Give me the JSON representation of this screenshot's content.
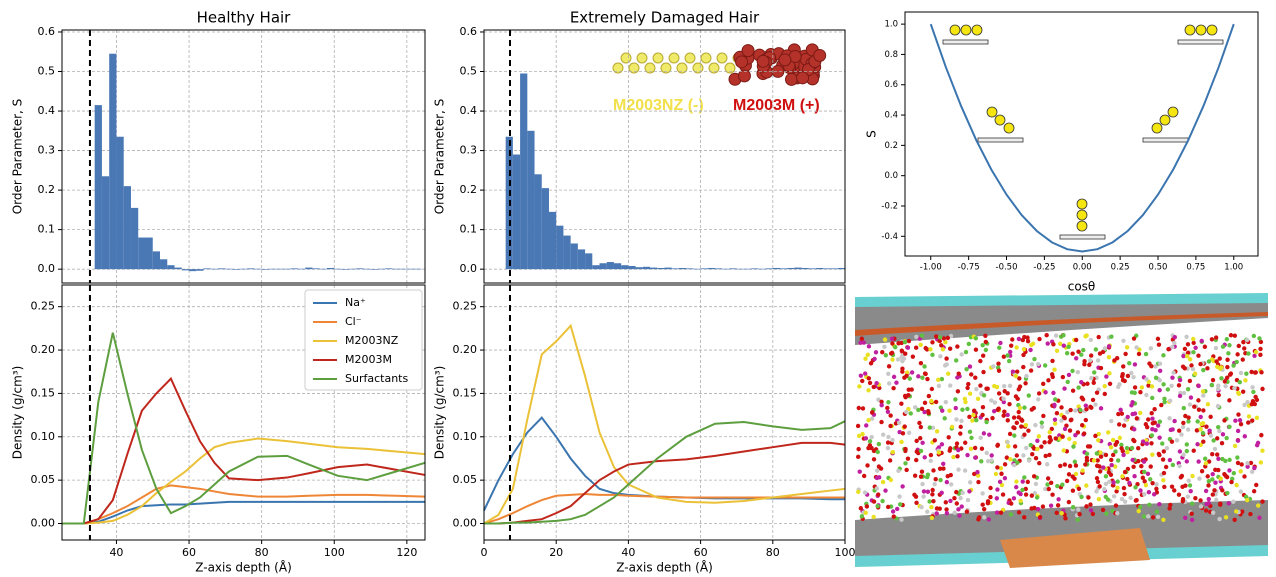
{
  "chart_data": [
    {
      "type": "histogram",
      "title": "Healthy Hair",
      "ylabel": "Order Parameter, S",
      "color": "#4a78b5",
      "grid": true,
      "vline": 32.7,
      "bins": [
        34,
        36,
        38,
        40,
        42,
        44,
        46,
        48,
        50,
        52,
        54,
        56,
        58,
        60,
        62,
        64,
        66,
        68,
        70,
        72,
        74,
        76,
        78,
        80,
        82,
        84,
        86,
        88,
        90,
        92,
        94,
        96,
        98,
        100,
        102,
        104,
        106,
        108,
        110,
        112,
        114,
        116,
        118,
        120,
        122,
        124
      ],
      "values": [
        0.415,
        0.235,
        0.545,
        0.335,
        0.21,
        0.155,
        0.08,
        0.08,
        0.045,
        0.025,
        0.01,
        0.004,
        -0.003,
        -0.005,
        -0.004,
        0.002,
        0.001,
        0.002,
        0.001,
        0,
        0.001,
        0.002,
        0.001,
        0,
        0.001,
        0.001,
        0.001,
        0.002,
        0.001,
        0.004,
        0.002,
        0.001,
        0.003,
        0.001,
        0,
        0.001,
        0.002,
        0.001,
        0,
        0.001,
        0.002,
        0.001,
        0.001,
        0.001,
        0.001
      ],
      "xlim": [
        25,
        125
      ],
      "ylim": [
        -0.035,
        0.605
      ],
      "yticks": [
        {
          "value": 0,
          "label": "0.0"
        },
        0.1,
        0.2,
        0.3,
        0.4,
        0.5,
        0.6
      ]
    },
    {
      "type": "line",
      "xlabel": "Z-axis depth (Å)",
      "ylabel": "Density (g/cm³)",
      "grid": true,
      "vline": 32.7,
      "legend": "upper right",
      "x": [
        25,
        31,
        35,
        39,
        43,
        47,
        51,
        55,
        59,
        63,
        67,
        71,
        79,
        87,
        93,
        101,
        109,
        117,
        125
      ],
      "series": [
        {
          "name": "Na⁺",
          "color": "#3b75af",
          "values": [
            0,
            0,
            0.002,
            0.008,
            0.015,
            0.02,
            0.021,
            0.022,
            0.022,
            0.023,
            0.024,
            0.025,
            0.025,
            0.025,
            0.025,
            0.025,
            0.025,
            0.025,
            0.025
          ]
        },
        {
          "name": "Cl⁻",
          "color": "#ef8636",
          "values": [
            0,
            0,
            0.005,
            0.012,
            0.02,
            0.03,
            0.04,
            0.044,
            0.042,
            0.04,
            0.037,
            0.034,
            0.031,
            0.031,
            0.032,
            0.033,
            0.033,
            0.032,
            0.031
          ]
        },
        {
          "name": "M2003NZ",
          "color": "#ebc137",
          "values": [
            0,
            0,
            0.001,
            0.003,
            0.01,
            0.02,
            0.035,
            0.048,
            0.06,
            0.075,
            0.088,
            0.093,
            0.098,
            0.095,
            0.092,
            0.088,
            0.086,
            0.083,
            0.08
          ]
        },
        {
          "name": "M2003M",
          "color": "#c0271c",
          "values": [
            0,
            0,
            0.005,
            0.027,
            0.08,
            0.13,
            0.15,
            0.167,
            0.13,
            0.095,
            0.07,
            0.052,
            0.05,
            0.053,
            0.058,
            0.065,
            0.068,
            0.062,
            0.056
          ]
        },
        {
          "name": "Surfactants",
          "color": "#5d9e3f",
          "values": [
            0,
            0,
            0.14,
            0.22,
            0.15,
            0.085,
            0.04,
            0.012,
            0.02,
            0.03,
            0.045,
            0.06,
            0.077,
            0.078,
            0.068,
            0.055,
            0.05,
            0.06,
            0.07
          ]
        }
      ],
      "xlim": [
        25,
        125
      ],
      "ylim": [
        -0.019,
        0.275
      ],
      "xticks": [
        40,
        60,
        80,
        100,
        120
      ],
      "yticks": [
        {
          "value": 0,
          "label": "0.00"
        },
        0.05,
        {
          "value": 0.1,
          "label": "0.10"
        },
        0.15,
        {
          "value": 0.2,
          "label": "0.20"
        },
        0.25
      ]
    },
    {
      "type": "histogram",
      "title": "Extremely Damaged Hair",
      "ylabel": "Order Parameter, S",
      "color": "#4a78b5",
      "grid": true,
      "vline": 7.2,
      "bins": [
        6,
        8,
        10,
        12,
        14,
        16,
        18,
        20,
        22,
        24,
        26,
        28,
        30,
        32,
        34,
        36,
        38,
        40,
        42,
        44,
        46,
        48,
        50,
        52,
        54,
        56,
        58,
        60,
        62,
        64,
        66,
        68,
        70,
        72,
        74,
        76,
        78,
        80,
        82,
        84,
        86,
        88,
        90,
        92,
        94,
        96,
        98,
        100
      ],
      "values": [
        0.335,
        0.29,
        0.495,
        0.35,
        0.24,
        0.205,
        0.145,
        0.11,
        0.085,
        0.065,
        0.05,
        0.04,
        0.01,
        0.015,
        0.018,
        0.015,
        0.01,
        0.008,
        0.005,
        0.006,
        0.004,
        0.003,
        0.004,
        0.002,
        0.003,
        0.002,
        0.001,
        0.002,
        0.003,
        0.002,
        0.001,
        0.002,
        0.001,
        0.001,
        0.002,
        0.001,
        0.002,
        0.003,
        0.002,
        0.003,
        0.004,
        0.003,
        0.002,
        0.003,
        0.002,
        0.002,
        0.003
      ],
      "xlim": [
        0,
        100
      ],
      "ylim": [
        -0.035,
        0.605
      ],
      "yticks": [
        {
          "value": 0,
          "label": "0.0"
        },
        0.1,
        0.2,
        0.3,
        0.4,
        0.5,
        0.6
      ]
    },
    {
      "type": "line",
      "xlabel": "Z-axis depth (Å)",
      "ylabel": "Density (g/cm³)",
      "grid": true,
      "vline": 7.2,
      "x": [
        0,
        4,
        8,
        12,
        16,
        20,
        24,
        28,
        32,
        36,
        40,
        48,
        56,
        64,
        72,
        80,
        88,
        96,
        100
      ],
      "series": [
        {
          "color": "#3b75af",
          "values": [
            0.015,
            0.05,
            0.08,
            0.105,
            0.122,
            0.1,
            0.075,
            0.055,
            0.04,
            0.035,
            0.033,
            0.031,
            0.03,
            0.029,
            0.029,
            0.029,
            0.029,
            0.028,
            0.028
          ]
        },
        {
          "color": "#ef8636",
          "values": [
            0,
            0.005,
            0.012,
            0.02,
            0.027,
            0.032,
            0.033,
            0.034,
            0.033,
            0.033,
            0.032,
            0.031,
            0.03,
            0.03,
            0.03,
            0.03,
            0.03,
            0.03,
            0.03
          ]
        },
        {
          "color": "#ebc137",
          "values": [
            0,
            0.01,
            0.04,
            0.12,
            0.195,
            0.21,
            0.228,
            0.17,
            0.105,
            0.065,
            0.045,
            0.03,
            0.025,
            0.024,
            0.026,
            0.03,
            0.034,
            0.038,
            0.04
          ]
        },
        {
          "color": "#c0271c",
          "values": [
            0,
            0,
            0.001,
            0.003,
            0.005,
            0.012,
            0.02,
            0.035,
            0.05,
            0.06,
            0.068,
            0.072,
            0.074,
            0.078,
            0.083,
            0.088,
            0.093,
            0.093,
            0.091
          ]
        },
        {
          "color": "#5d9e3f",
          "values": [
            0,
            0,
            0.001,
            0.001,
            0.002,
            0.003,
            0.005,
            0.01,
            0.02,
            0.03,
            0.045,
            0.075,
            0.1,
            0.115,
            0.117,
            0.112,
            0.108,
            0.11,
            0.118
          ]
        }
      ],
      "xlim": [
        0,
        100
      ],
      "ylim": [
        -0.019,
        0.275
      ],
      "xticks": [
        0,
        20,
        40,
        60,
        80,
        100
      ],
      "yticks": [
        {
          "value": 0,
          "label": "0.00"
        },
        0.05,
        {
          "value": 0.1,
          "label": "0.10"
        },
        0.15,
        {
          "value": 0.2,
          "label": "0.20"
        },
        0.25
      ]
    },
    {
      "type": "curve",
      "xlabel": "cosθ",
      "ylabel": "S",
      "grid": false,
      "x": [
        -1,
        -0.9,
        -0.8,
        -0.7,
        -0.6,
        -0.5,
        -0.4,
        -0.3,
        -0.2,
        -0.1,
        0,
        0.1,
        0.2,
        0.3,
        0.4,
        0.5,
        0.6,
        0.7,
        0.8,
        0.9,
        1
      ],
      "series": [
        {
          "color": "#3b75af",
          "values": [
            1,
            0.715,
            0.46,
            0.235,
            0.04,
            -0.125,
            -0.26,
            -0.365,
            -0.44,
            -0.485,
            -0.5,
            -0.485,
            -0.44,
            -0.365,
            -0.26,
            -0.125,
            0.04,
            0.235,
            0.46,
            0.715,
            1
          ]
        }
      ],
      "xlim": [
        -1.17,
        1.16
      ],
      "ylim": [
        -0.53,
        1.08
      ],
      "xticks": [
        {
          "value": -1,
          "label": "-1.00"
        },
        -0.75,
        {
          "value": -0.5,
          "label": "-0.50"
        },
        -0.25,
        {
          "value": 0,
          "label": "0.00"
        },
        0.25,
        {
          "value": 0.5,
          "label": "0.50"
        },
        0.75,
        {
          "value": 1,
          "label": "1.00"
        }
      ],
      "yticks": [
        -0.4,
        -0.2,
        {
          "value": 0,
          "label": "0.0"
        },
        0.2,
        0.4,
        0.6,
        0.8,
        {
          "value": 1,
          "label": "1.0"
        }
      ]
    }
  ],
  "illustration": {
    "labels": [
      "M2003NZ (-)",
      "M2003M (+)"
    ]
  }
}
